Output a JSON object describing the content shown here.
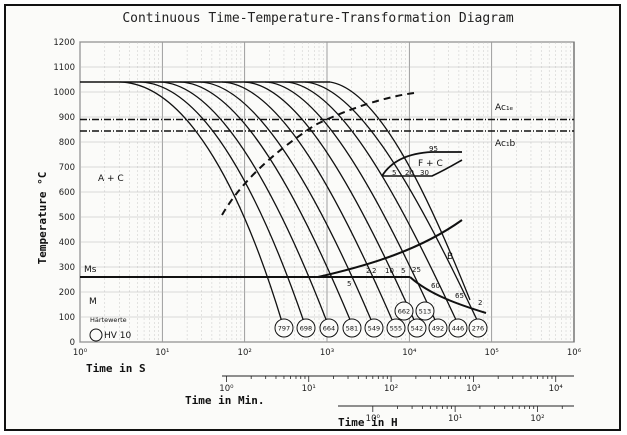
{
  "chart_data": {
    "type": "line",
    "title": "Continuous Time-Temperature-Transformation Diagram",
    "ylabel": "Temperature °C",
    "xlabel": "Time in S",
    "xscale": "log",
    "xlim": [
      1,
      1000000
    ],
    "ylim": [
      0,
      1200
    ],
    "grid": true,
    "y_ticks": [
      "0",
      "100",
      "200",
      "300",
      "400",
      "500",
      "600",
      "700",
      "800",
      "900",
      "1000",
      "1100",
      "1200"
    ],
    "x_ticks": [
      "10⁰",
      "10¹",
      "10²",
      "10³",
      "10⁴",
      "10⁵",
      "10⁶"
    ],
    "minutes_axis": {
      "label": "Time in Min.",
      "ticks": [
        "10⁰",
        "10¹",
        "10²",
        "10³",
        "10⁴"
      ]
    },
    "hours_axis": {
      "label": "Time in H",
      "ticks": [
        "10⁰",
        "10¹",
        "10²"
      ]
    },
    "lines": {
      "ac1e": {
        "label": "Ac₁ₑ",
        "y": 890
      },
      "ac1b": {
        "label": "Ac₁b",
        "y": 845
      },
      "ms": {
        "label": "Ms",
        "y": 260
      }
    },
    "regions": [
      {
        "label": "A + C"
      },
      {
        "label": "F + C"
      },
      {
        "label": "B"
      },
      {
        "label": "M"
      }
    ],
    "percent_labels": [
      "95",
      "5",
      "20",
      "30",
      "2",
      "5",
      "10",
      "25",
      "2",
      "5",
      "60",
      "65",
      "2"
    ],
    "hardness": {
      "header": "Härtewerte",
      "legend": "HV 10",
      "values": [
        "797",
        "698",
        "664",
        "581",
        "549",
        "555",
        "542",
        "492",
        "446",
        "276"
      ],
      "upper_values": [
        "662",
        "513"
      ]
    }
  }
}
